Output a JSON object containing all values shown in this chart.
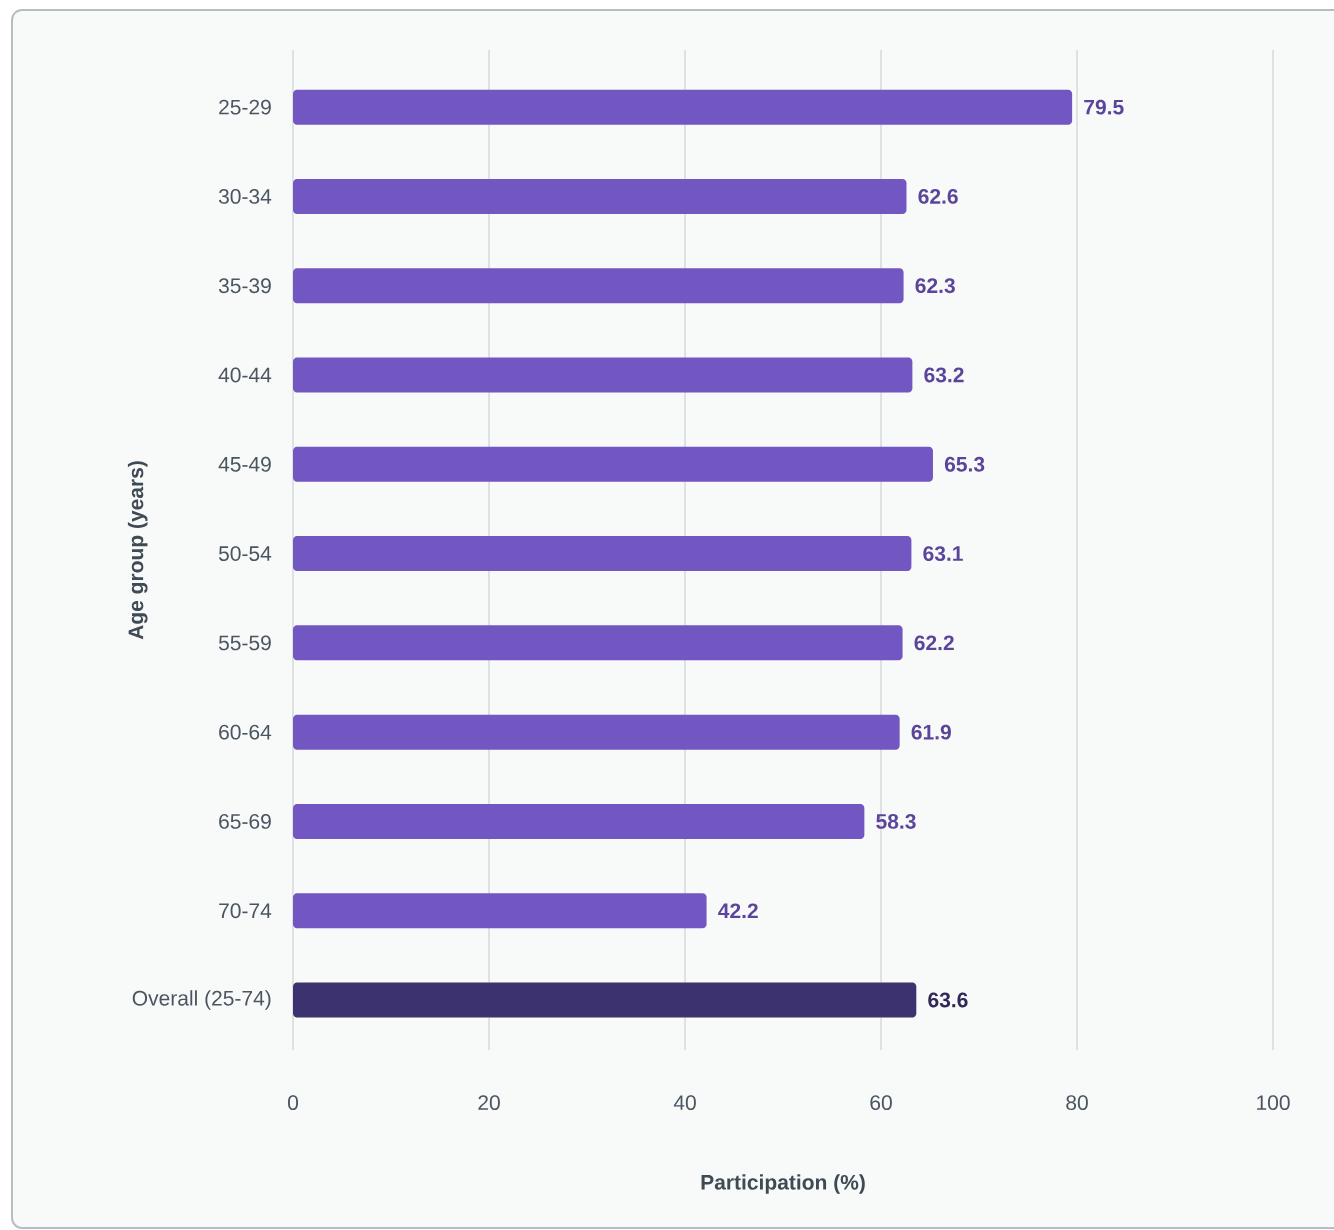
{
  "chart_data": {
    "type": "bar",
    "orientation": "horizontal",
    "xlabel": "Participation (%)",
    "ylabel": "Age group (years)",
    "categories": [
      "25-29",
      "30-34",
      "35-39",
      "40-44",
      "45-49",
      "50-54",
      "55-59",
      "60-64",
      "65-69",
      "70-74",
      "Overall (25-74)"
    ],
    "values": [
      79.5,
      62.6,
      62.3,
      63.2,
      65.3,
      63.1,
      62.2,
      61.9,
      58.3,
      42.2,
      63.6
    ],
    "colors": [
      "#7256c2",
      "#7256c2",
      "#7256c2",
      "#7256c2",
      "#7256c2",
      "#7256c2",
      "#7256c2",
      "#7256c2",
      "#7256c2",
      "#7256c2",
      "#3d3270"
    ],
    "xlim": [
      0,
      100
    ],
    "xticks": [
      0,
      20,
      40,
      60,
      80,
      100
    ],
    "grid": "x",
    "data_labels": true
  }
}
